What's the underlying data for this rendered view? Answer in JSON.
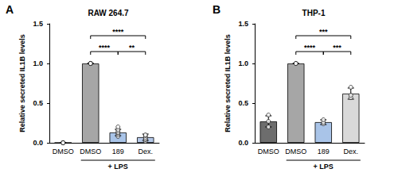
{
  "chart_data": [
    {
      "type": "bar",
      "panel": "A",
      "title": "RAW 264.7",
      "y_label": "Relative secreted IL1B levels",
      "categories": [
        "DMSO",
        "DMSO",
        "189",
        "Dex."
      ],
      "values": [
        0,
        1,
        0.13,
        0.07
      ],
      "errors": [
        0,
        0,
        0.04,
        0.04
      ],
      "points": [
        [
          0,
          0,
          0,
          0,
          0,
          0
        ],
        [
          1,
          1,
          1,
          1,
          1,
          1,
          1
        ],
        [
          0.08,
          0.1,
          0.12,
          0.13,
          0.15,
          0.17,
          0.2
        ],
        [
          0.02,
          0.04,
          0.05,
          0.07,
          0.09,
          0.1
        ]
      ],
      "colors": [
        "#7f7f7f",
        "#a6a6a6",
        "#a9c4e8",
        "#b4c7e7"
      ],
      "ylim": [
        0,
        1.5
      ],
      "yticks": [
        {
          "value": 0,
          "label": "0.0"
        },
        0.5,
        {
          "value": 1,
          "label": "1.0"
        },
        1.5
      ],
      "group": {
        "label": "+ LPS",
        "from": 1,
        "to": 3
      },
      "brackets": [
        {
          "from": 1,
          "to": 3,
          "y": 1.35,
          "label": "****"
        },
        {
          "from": 1,
          "to": 2,
          "y": 1.15,
          "label": "****"
        },
        {
          "from": 2,
          "to": 3,
          "y": 1.15,
          "label": "**"
        }
      ]
    },
    {
      "type": "bar",
      "panel": "B",
      "title": "THP-1",
      "y_label": "Relative secreted IL1B levels",
      "categories": [
        "DMSO",
        "DMSO",
        "189",
        "Dex."
      ],
      "values": [
        0.27,
        1,
        0.26,
        0.62
      ],
      "errors": [
        0.07,
        0,
        0.03,
        0.07
      ],
      "points": [
        [
          0.2,
          0.27,
          0.35
        ],
        [
          1,
          1,
          1
        ],
        [
          0.24,
          0.26,
          0.29
        ],
        [
          0.57,
          0.6,
          0.7
        ]
      ],
      "colors": [
        "#6d6d6d",
        "#a6a6a6",
        "#a9c4e8",
        "#d9d9d9"
      ],
      "ylim": [
        0,
        1.5
      ],
      "yticks": [
        {
          "value": 0,
          "label": "0.0"
        },
        0.5,
        {
          "value": 1,
          "label": "1.0"
        },
        1.5
      ],
      "group": {
        "label": "+ LPS",
        "from": 1,
        "to": 3
      },
      "brackets": [
        {
          "from": 1,
          "to": 3,
          "y": 1.35,
          "label": "***"
        },
        {
          "from": 1,
          "to": 2,
          "y": 1.15,
          "label": "****"
        },
        {
          "from": 2,
          "to": 3,
          "y": 1.15,
          "label": "***"
        }
      ]
    }
  ]
}
